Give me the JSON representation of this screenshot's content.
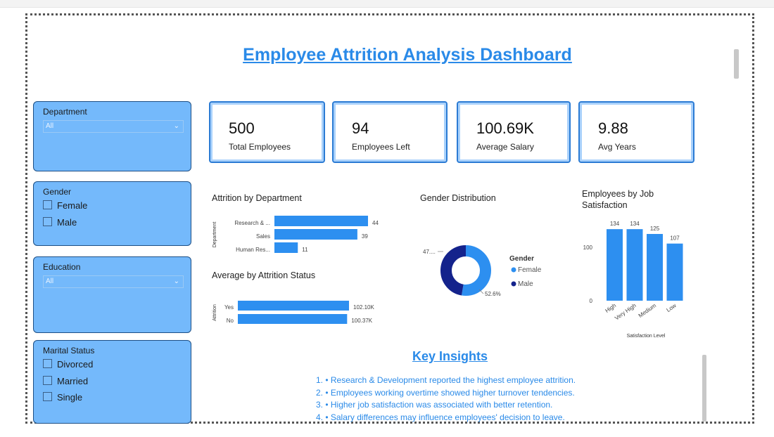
{
  "page": {
    "title": "Employee Attrition Analysis Dashboard"
  },
  "slicers": {
    "department": {
      "title": "Department",
      "value": "All"
    },
    "gender": {
      "title": "Gender",
      "options": [
        "Female",
        "Male"
      ]
    },
    "education": {
      "title": "Education",
      "value": "All"
    },
    "marital": {
      "title": "Marital Status",
      "options": [
        "Divorced",
        "Married",
        "Single"
      ]
    }
  },
  "kpis": [
    {
      "value": "500",
      "label": "Total Employees"
    },
    {
      "value": "94",
      "label": "Employees Left"
    },
    {
      "value": "100.69K",
      "label": "Average Salary"
    },
    {
      "value": "9.88",
      "label": "Avg Years"
    }
  ],
  "chart_data": [
    {
      "type": "bar",
      "orientation": "horizontal",
      "title": "Attrition by Department",
      "ylabel": "Department",
      "categories": [
        "Research & ...",
        "Sales",
        "Human Res..."
      ],
      "values": [
        44,
        39,
        11
      ],
      "data_labels": [
        "44",
        "39",
        "11"
      ],
      "color": "#2d8ff0"
    },
    {
      "type": "bar",
      "orientation": "horizontal",
      "title": "Average by Attrition Status",
      "ylabel": "Attrition",
      "categories": [
        "Yes",
        "No"
      ],
      "values": [
        102.1,
        100.37
      ],
      "data_labels": [
        "102.10K",
        "100.37K"
      ],
      "color": "#2d8ff0"
    },
    {
      "type": "pie",
      "title": "Gender Distribution",
      "legend_title": "Gender",
      "legend_position": "right",
      "categories": [
        "Female",
        "Male"
      ],
      "values": [
        52.6,
        47.4
      ],
      "data_labels": [
        "52.6%",
        "47...."
      ],
      "colors": [
        "#2d8ff0",
        "#14238c"
      ]
    },
    {
      "type": "bar",
      "title": "Employees by Job Satisfaction",
      "xlabel": "Satisfaction Level",
      "categories": [
        "High",
        "Very High",
        "Medium",
        "Low"
      ],
      "values": [
        134,
        134,
        125,
        107
      ],
      "yticks": [
        "0",
        "100"
      ],
      "ylim": [
        0,
        150
      ],
      "color": "#2d8ff0"
    }
  ],
  "insights": {
    "title": "Key Insights",
    "items": [
      "1. • Research & Development reported the highest employee attrition.",
      "2. • Employees working overtime showed higher turnover tendencies.",
      "3. • Higher job satisfaction was associated with better retention.",
      "4. • Salary differences may influence employees' decision to leave."
    ]
  }
}
